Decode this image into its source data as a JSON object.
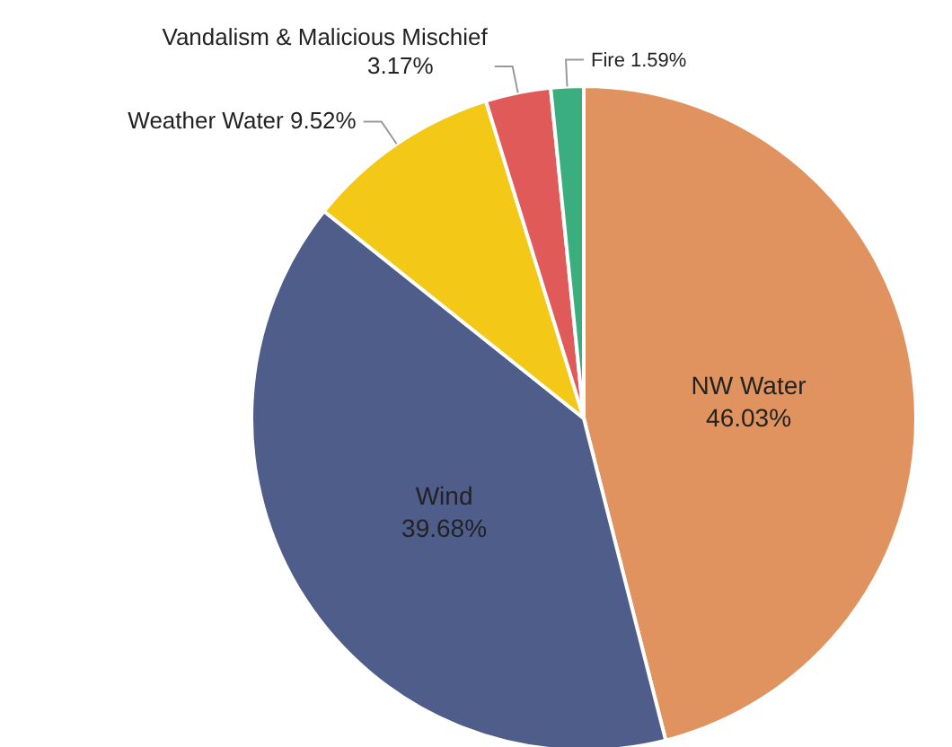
{
  "chart_data": {
    "type": "pie",
    "categories": [
      "NW Water",
      "Wind",
      "Weather Water",
      "Vandalism & Malicious Mischief",
      "Fire"
    ],
    "values": [
      46.03,
      39.68,
      9.52,
      3.17,
      1.59
    ],
    "colors": [
      "#e0935f",
      "#4e5d89",
      "#f3c816",
      "#e05a5a",
      "#3aae7e"
    ],
    "value_labels": [
      "46.03%",
      "39.68%",
      "9.52%",
      "3.17%",
      "1.59%"
    ],
    "legend": false
  }
}
